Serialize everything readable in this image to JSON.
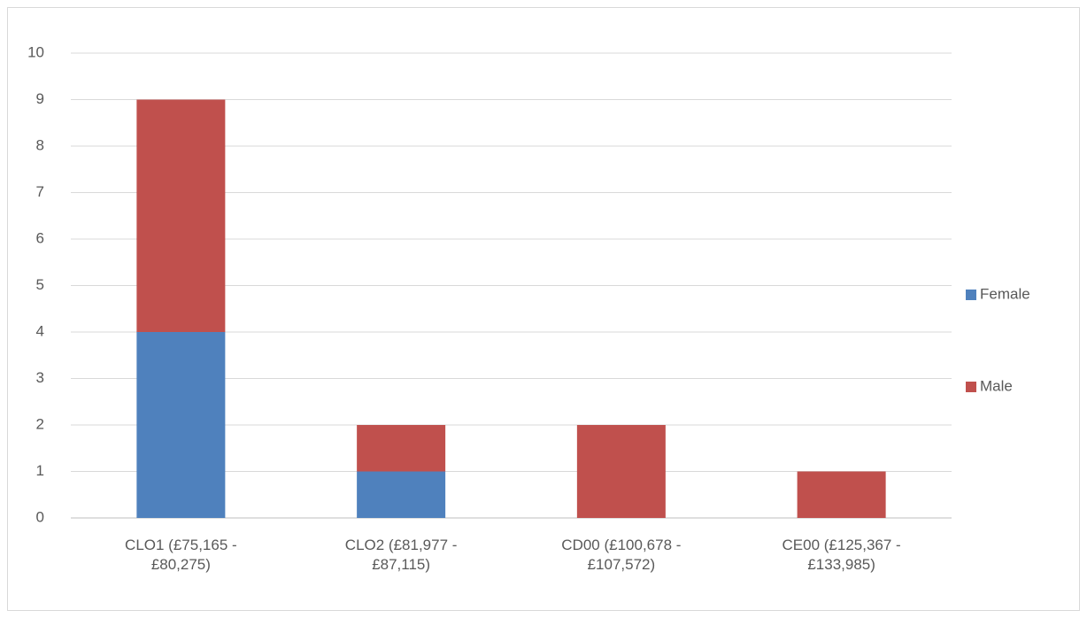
{
  "chart_data": {
    "type": "bar",
    "stacked": true,
    "categories": [
      "CLO1  (£75,165 - £80,275)",
      "CLO2  (£81,977 - £87,115)",
      "CD00  (£100,678 - £107,572)",
      "CE00  (£125,367 - £133,985)"
    ],
    "series": [
      {
        "name": "Female",
        "color": "#4f81bd",
        "values": [
          4,
          1,
          0,
          0
        ]
      },
      {
        "name": "Male",
        "color": "#c0504d",
        "values": [
          5,
          1,
          2,
          1
        ]
      }
    ],
    "ylim": [
      0,
      10
    ],
    "yticks": [
      0,
      1,
      2,
      3,
      4,
      5,
      6,
      7,
      8,
      9,
      10
    ],
    "grid": true,
    "legend": "right"
  }
}
